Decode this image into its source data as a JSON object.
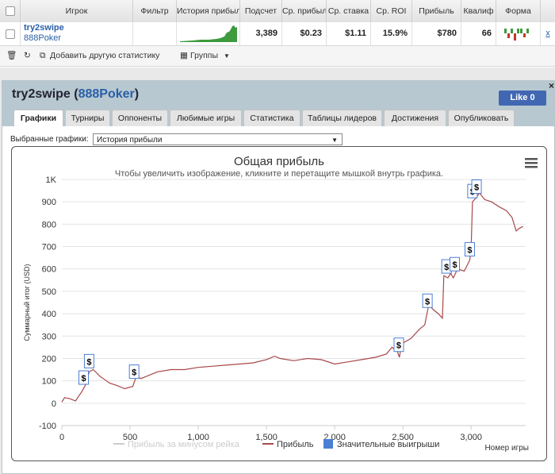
{
  "table": {
    "headers": [
      "Игрок",
      "Фильтр",
      "История прибыл",
      "Подсчет",
      "Ср. прибыль",
      "Ср. ставка",
      "Ср. ROI",
      "Прибыль",
      "Квалиф",
      "Форма"
    ],
    "row": {
      "player": "try2swipe",
      "site": "888Poker",
      "count": "3,389",
      "avg_profit": "$0.23",
      "avg_stake": "$1.11",
      "avg_roi": "15.9%",
      "profit": "$780",
      "qual": "66",
      "remove": "x"
    }
  },
  "toolbar": {
    "add_stats": "Добавить другую статистику",
    "groups": "Группы"
  },
  "panel": {
    "player": "try2swipe",
    "site": "888Poker",
    "like": "Like 0",
    "close": "×",
    "tabs": [
      "Графики",
      "Турниры",
      "Оппоненты",
      "Любимые игры",
      "Статистика",
      "Таблицы лидеров",
      "Достижения",
      "Опубликовать"
    ],
    "select_label": "Выбранные графики:",
    "select_value": "История прибыли"
  },
  "chart_data": {
    "type": "line",
    "title": "Общая прибыль",
    "subtitle": "Чтобы увеличить изображение, кликните и перетащите мышкой внутрь графика.",
    "xlabel": "Номер игры",
    "ylabel": "Суммарный итог (USD)",
    "xlim": [
      0,
      3400
    ],
    "ylim": [
      -100,
      1000
    ],
    "x_ticks": [
      "0",
      "500",
      "1,000",
      "1,500",
      "2,000",
      "2,500",
      "3,000"
    ],
    "y_ticks": [
      "-100",
      "0",
      "100",
      "200",
      "300",
      "400",
      "500",
      "600",
      "700",
      "800",
      "900",
      "1K"
    ],
    "legend": [
      "Прибыль за минусом рейка",
      "Прибыль",
      "Значительные выигрыши"
    ],
    "colors": {
      "profit": "#a8484a",
      "rake": "#cccccc",
      "big_wins": "#4a7fd4"
    },
    "series": [
      {
        "name": "Прибыль",
        "points": [
          [
            0,
            5
          ],
          [
            20,
            25
          ],
          [
            60,
            20
          ],
          [
            100,
            10
          ],
          [
            150,
            55
          ],
          [
            180,
            90
          ],
          [
            200,
            140
          ],
          [
            230,
            150
          ],
          [
            280,
            120
          ],
          [
            350,
            90
          ],
          [
            400,
            80
          ],
          [
            460,
            65
          ],
          [
            520,
            75
          ],
          [
            545,
            120
          ],
          [
            580,
            110
          ],
          [
            640,
            125
          ],
          [
            700,
            140
          ],
          [
            800,
            150
          ],
          [
            900,
            150
          ],
          [
            1000,
            160
          ],
          [
            1100,
            165
          ],
          [
            1200,
            170
          ],
          [
            1300,
            175
          ],
          [
            1400,
            180
          ],
          [
            1500,
            195
          ],
          [
            1560,
            210
          ],
          [
            1600,
            200
          ],
          [
            1700,
            190
          ],
          [
            1800,
            200
          ],
          [
            1900,
            195
          ],
          [
            2000,
            175
          ],
          [
            2100,
            185
          ],
          [
            2200,
            195
          ],
          [
            2300,
            205
          ],
          [
            2380,
            220
          ],
          [
            2420,
            250
          ],
          [
            2460,
            230
          ],
          [
            2475,
            205
          ],
          [
            2490,
            265
          ],
          [
            2560,
            290
          ],
          [
            2620,
            330
          ],
          [
            2660,
            350
          ],
          [
            2690,
            440
          ],
          [
            2720,
            420
          ],
          [
            2760,
            400
          ],
          [
            2790,
            380
          ],
          [
            2800,
            570
          ],
          [
            2830,
            560
          ],
          [
            2850,
            580
          ],
          [
            2870,
            560
          ],
          [
            2900,
            600
          ],
          [
            2950,
            590
          ],
          [
            2990,
            640
          ],
          [
            3000,
            690
          ],
          [
            3010,
            900
          ],
          [
            3040,
            920
          ],
          [
            3060,
            940
          ],
          [
            3100,
            910
          ],
          [
            3150,
            900
          ],
          [
            3200,
            880
          ],
          [
            3260,
            860
          ],
          [
            3300,
            830
          ],
          [
            3330,
            770
          ],
          [
            3350,
            780
          ],
          [
            3380,
            790
          ]
        ]
      }
    ],
    "big_wins_x": [
      160,
      200,
      530,
      2470,
      2680,
      2820,
      2880,
      2990,
      3010,
      3040
    ]
  }
}
